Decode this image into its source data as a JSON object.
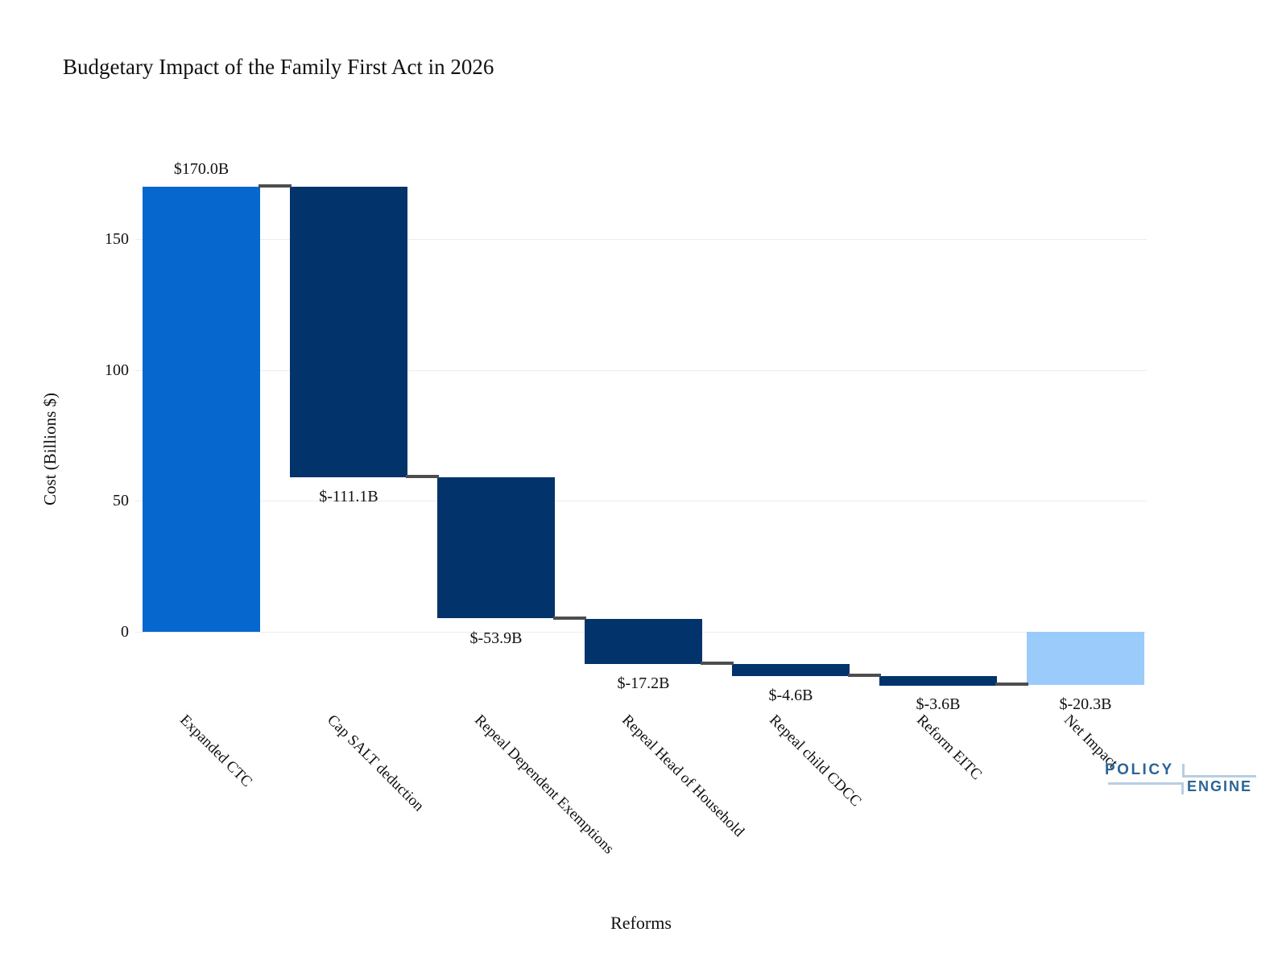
{
  "page": {
    "background": "#FFFFFF"
  },
  "chart_data": {
    "type": "bar",
    "subtype": "waterfall",
    "title": "Budgetary Impact of the Family First Act in 2026",
    "xlabel": "Reforms",
    "ylabel": "Cost (Billions $)",
    "categories": [
      "Expanded CTC",
      "Cap SALT deduction",
      "Repeal Dependent Exemptions",
      "Repeal Head of Household",
      "Repeal child CDCC",
      "Reform EITC",
      "Net Impact"
    ],
    "values": [
      170.0,
      -111.1,
      -53.9,
      -17.2,
      -4.6,
      -3.6,
      -20.3
    ],
    "measures": [
      "relative",
      "relative",
      "relative",
      "relative",
      "relative",
      "relative",
      "total"
    ],
    "bar_labels": [
      "$170.0B",
      "$-111.1B",
      "$-53.9B",
      "$-17.2B",
      "$-4.6B",
      "$-3.6B",
      "$-20.3B"
    ],
    "cumulative": [
      170.0,
      58.9,
      5.0,
      -12.2,
      -16.8,
      -20.4,
      -20.3
    ],
    "yticks": [
      0,
      50,
      100,
      150
    ],
    "ylim": [
      -25,
      175
    ],
    "grid": true,
    "legend": false,
    "colors": {
      "increase": "#0667CE",
      "decrease": "#03336B",
      "total": "#9ACBFA",
      "connector": "#4D4D4D",
      "gridline": "#EBEBF2",
      "text": "#111111"
    }
  },
  "logo": {
    "line1": "POLICY",
    "line2": "ENGINE",
    "text_color": "#2C6496",
    "accent_color": "#B9CEE0"
  }
}
